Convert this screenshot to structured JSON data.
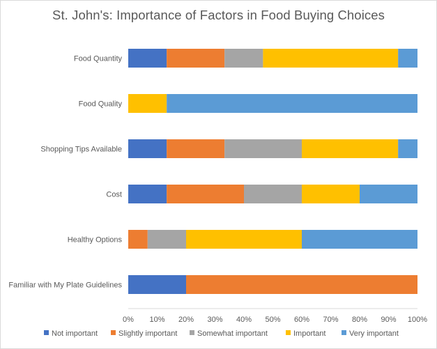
{
  "chart_data": {
    "type": "bar",
    "orientation": "horizontal",
    "stacked": true,
    "title": "St. John's: Importance of Factors in Food Buying Choices",
    "xlabel": "",
    "ylabel": "",
    "xlim": [
      0,
      100
    ],
    "x_ticks": [
      "0%",
      "10%",
      "20%",
      "30%",
      "40%",
      "50%",
      "60%",
      "70%",
      "80%",
      "90%",
      "100%"
    ],
    "grid": false,
    "legend_position": "bottom",
    "categories": [
      "Food Quantity",
      "Food Quality",
      "Shopping Tips Available",
      "Cost",
      "Healthy Options",
      "Familiar with My Plate Guidelines"
    ],
    "series": [
      {
        "name": "Not important",
        "color": "#4472C4",
        "values": [
          13.3,
          0,
          13.3,
          13.3,
          0,
          20
        ]
      },
      {
        "name": "Slightly important",
        "color": "#ED7D31",
        "values": [
          20,
          0,
          20,
          26.7,
          6.7,
          80
        ]
      },
      {
        "name": "Somewhat important",
        "color": "#A5A5A5",
        "values": [
          13.3,
          0,
          26.7,
          20,
          13.3,
          0
        ]
      },
      {
        "name": "Important",
        "color": "#FFC000",
        "values": [
          46.7,
          13.3,
          33.3,
          20,
          40,
          0
        ]
      },
      {
        "name": "Very important",
        "color": "#5B9BD5",
        "values": [
          6.7,
          86.7,
          6.7,
          20,
          40,
          0
        ]
      }
    ]
  }
}
